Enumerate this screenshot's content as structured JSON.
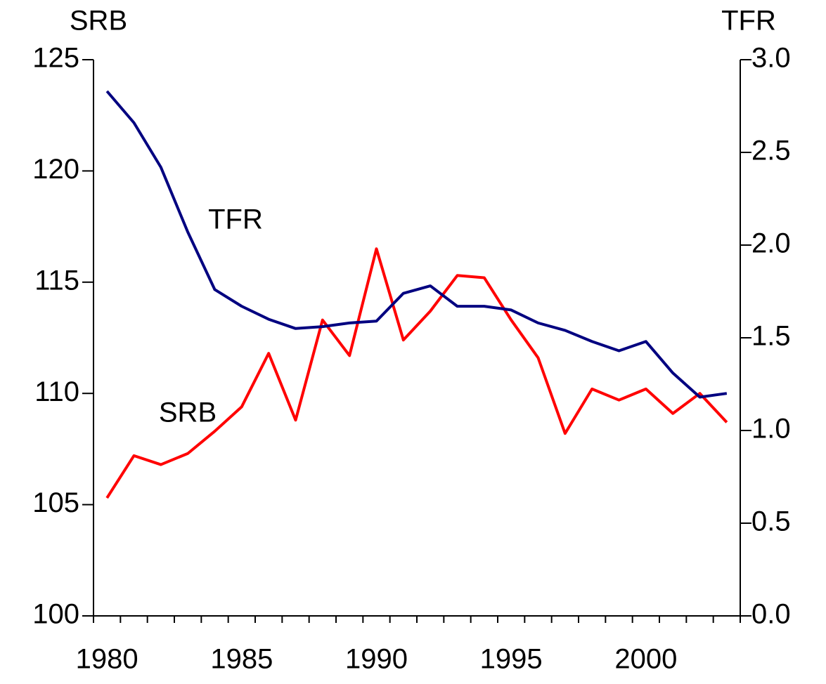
{
  "chart_data": {
    "type": "line",
    "ylabel": "SRB",
    "y2label": "TFR",
    "x": [
      1980,
      1981,
      1982,
      1983,
      1984,
      1985,
      1986,
      1987,
      1988,
      1989,
      1990,
      1991,
      1992,
      1993,
      1994,
      1995,
      1996,
      1997,
      1998,
      1999,
      2000,
      2001,
      2002,
      2003
    ],
    "xlim": [
      1979.5,
      2003.5
    ],
    "xticks": [
      1980,
      1985,
      1990,
      1995,
      2000
    ],
    "ylim": [
      100,
      125
    ],
    "yticks": [
      100,
      105,
      110,
      115,
      120,
      125
    ],
    "y2lim": [
      0,
      3
    ],
    "y2ticks": [
      {
        "value": 0,
        "label": "0.0"
      },
      {
        "value": 0.5,
        "label": "0.5"
      },
      {
        "value": 1,
        "label": "1.0"
      },
      {
        "value": 1.5,
        "label": "1.5"
      },
      {
        "value": 2,
        "label": "2.0"
      },
      {
        "value": 2.5,
        "label": "2.5"
      },
      {
        "value": 3,
        "label": "3.0"
      }
    ],
    "series": [
      {
        "name": "SRB",
        "color": "#ff0000",
        "values": [
          105.3,
          107.2,
          106.8,
          107.3,
          108.3,
          109.4,
          111.8,
          108.8,
          113.3,
          111.7,
          116.5,
          112.4,
          113.7,
          115.3,
          115.2,
          113.3,
          111.6,
          108.2,
          110.2,
          109.7,
          110.2,
          109.1,
          110.0,
          108.7
        ]
      },
      {
        "name": "TFR",
        "color": "#000080",
        "axis": "y2",
        "values": [
          2.83,
          2.66,
          2.42,
          2.07,
          1.76,
          1.67,
          1.6,
          1.55,
          1.56,
          1.58,
          1.59,
          1.74,
          1.78,
          1.67,
          1.67,
          1.65,
          1.58,
          1.54,
          1.48,
          1.43,
          1.48,
          1.31,
          1.18,
          1.2
        ]
      }
    ]
  }
}
